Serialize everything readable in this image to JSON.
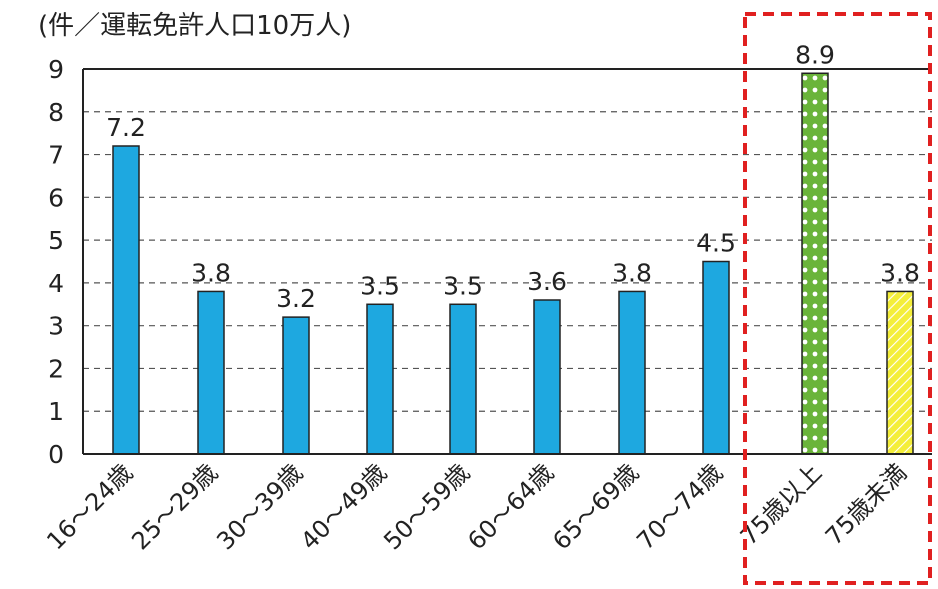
{
  "chart_data": {
    "type": "bar",
    "ylabel": "(件／運転免許人口10万人)",
    "ylim": [
      0,
      9
    ],
    "yticks": [
      "0",
      "1",
      "2",
      "3",
      "4",
      "5",
      "6",
      "7",
      "8",
      "9"
    ],
    "grid": "horizontal dashed",
    "categories": [
      "16～24歳",
      "25～29歳",
      "30～39歳",
      "40～49歳",
      "50～59歳",
      "60～64歳",
      "65～69歳",
      "70～74歳",
      "75歳以上",
      "75歳未満"
    ],
    "values": [
      7.2,
      3.8,
      3.2,
      3.5,
      3.5,
      3.6,
      3.8,
      4.5,
      8.9,
      3.8
    ],
    "value_labels": [
      "7.2",
      "3.8",
      "3.2",
      "3.5",
      "3.5",
      "3.6",
      "3.8",
      "4.5",
      "8.9",
      "3.8"
    ],
    "highlight": {
      "categories": [
        "75歳以上",
        "75歳未満"
      ],
      "border_color": "#e02020",
      "style": "dashed box"
    },
    "colors": {
      "bar": "#1ea8e0",
      "bar_75_plus": "#6ab43a",
      "bar_75_minus": "#f4ee3a",
      "outline": "#222222"
    }
  }
}
